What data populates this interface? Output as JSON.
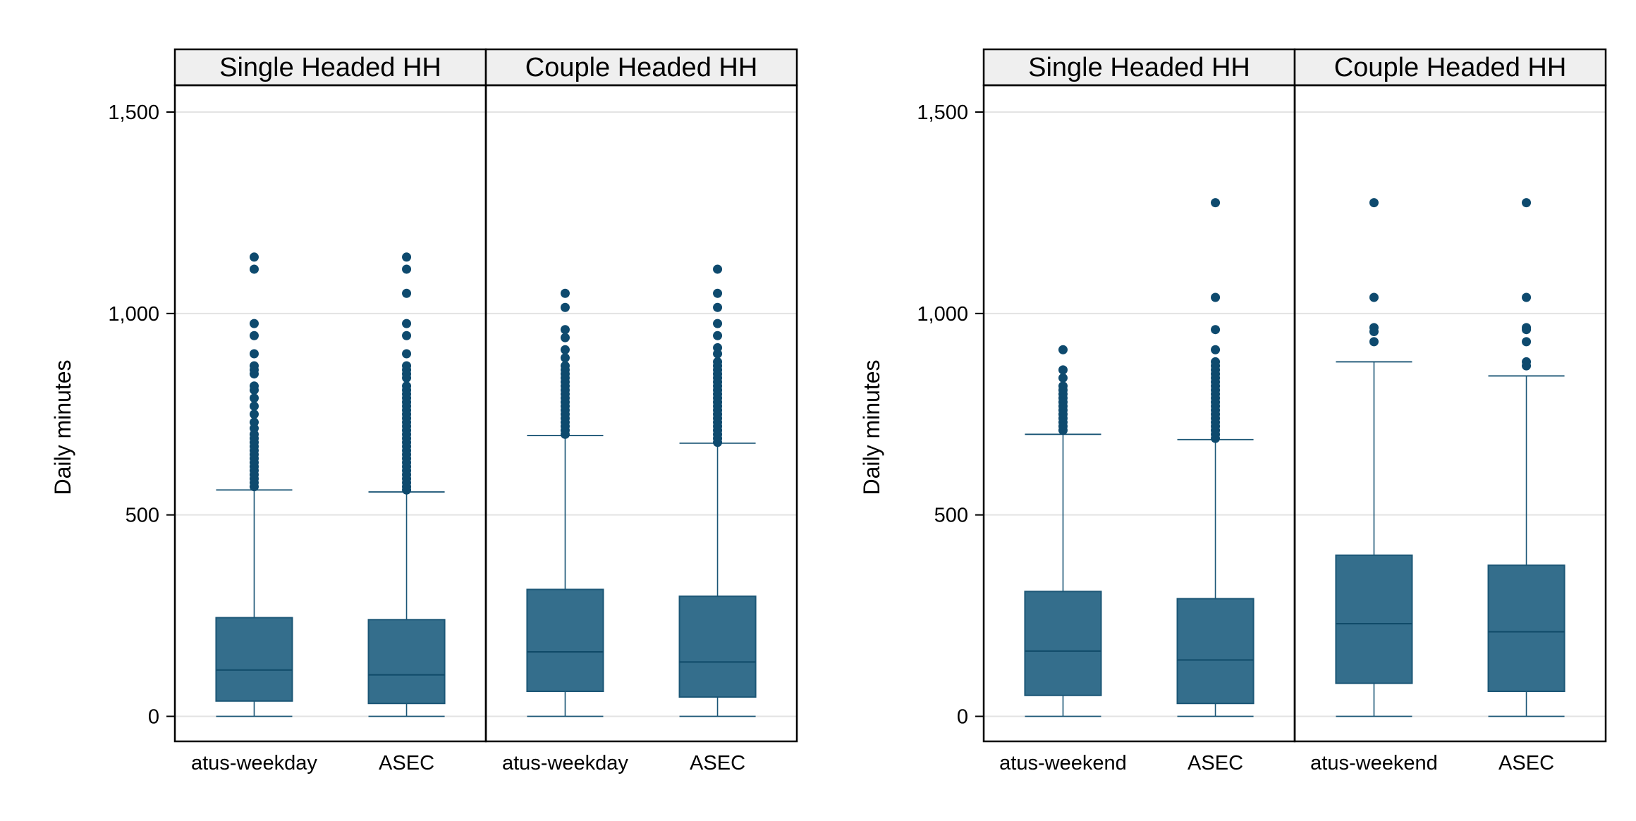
{
  "colors": {
    "box_fill": "#346E8C",
    "box_stroke": "#1B5676",
    "outlier": "#0E4A6E",
    "strip_bg": "#EFEFEF",
    "grid": "#E3E3E3"
  },
  "chart_data": [
    {
      "type": "box",
      "ylabel": "Daily minutes",
      "ylim": [
        -60,
        1640
      ],
      "yticks": [
        0,
        500,
        1000,
        1500
      ],
      "ytick_labels": [
        "0",
        "500",
        "1,000",
        "1,500"
      ],
      "grid": true,
      "facets": [
        {
          "title": "Single Headed HH",
          "boxes": [
            {
              "label": "atus-weekday",
              "whisker_low": 0,
              "q1": 38,
              "median": 115,
              "q3": 245,
              "whisker_high": 562,
              "outliers": [
                1140,
                1110,
                975,
                945,
                900,
                870,
                860,
                850,
                820,
                810,
                790,
                770,
                750,
                730,
                715,
                700,
                690,
                680,
                670,
                660,
                650,
                640,
                630,
                620,
                610,
                600,
                590,
                580,
                570
              ]
            },
            {
              "label": "ASEC",
              "whisker_low": 0,
              "q1": 32,
              "median": 103,
              "q3": 240,
              "whisker_high": 557,
              "outliers": [
                1140,
                1110,
                1050,
                975,
                945,
                900,
                870,
                860,
                850,
                840,
                820,
                810,
                800,
                790,
                780,
                770,
                760,
                750,
                740,
                730,
                720,
                710,
                700,
                690,
                680,
                670,
                660,
                650,
                640,
                630,
                620,
                610,
                600,
                590,
                580,
                570,
                562
              ]
            }
          ]
        },
        {
          "title": "Couple Headed HH",
          "boxes": [
            {
              "label": "atus-weekday",
              "whisker_low": 0,
              "q1": 62,
              "median": 160,
              "q3": 315,
              "whisker_high": 697,
              "outliers": [
                1050,
                1015,
                960,
                940,
                910,
                890,
                870,
                860,
                850,
                840,
                830,
                820,
                810,
                800,
                790,
                780,
                770,
                760,
                750,
                740,
                730,
                720,
                710,
                700
              ]
            },
            {
              "label": "ASEC",
              "whisker_low": 0,
              "q1": 48,
              "median": 135,
              "q3": 298,
              "whisker_high": 678,
              "outliers": [
                1110,
                1050,
                1015,
                975,
                945,
                915,
                900,
                880,
                870,
                860,
                850,
                840,
                830,
                820,
                810,
                800,
                790,
                780,
                770,
                760,
                750,
                740,
                730,
                720,
                710,
                700,
                690,
                680
              ]
            }
          ]
        }
      ]
    },
    {
      "type": "box",
      "ylabel": "Daily minutes",
      "ylim": [
        -60,
        1640
      ],
      "yticks": [
        0,
        500,
        1000,
        1500
      ],
      "ytick_labels": [
        "0",
        "500",
        "1,000",
        "1,500"
      ],
      "grid": true,
      "facets": [
        {
          "title": "Single Headed HH",
          "boxes": [
            {
              "label": "atus-weekend",
              "whisker_low": 0,
              "q1": 52,
              "median": 162,
              "q3": 310,
              "whisker_high": 700,
              "outliers": [
                910,
                860,
                840,
                820,
                810,
                800,
                790,
                780,
                770,
                760,
                750,
                740,
                730,
                720,
                710
              ]
            },
            {
              "label": "ASEC",
              "whisker_low": 0,
              "q1": 32,
              "median": 140,
              "q3": 292,
              "whisker_high": 687,
              "outliers": [
                1275,
                1040,
                960,
                910,
                880,
                870,
                860,
                850,
                840,
                830,
                820,
                810,
                800,
                790,
                780,
                770,
                760,
                750,
                740,
                730,
                720,
                710,
                700,
                690
              ]
            }
          ]
        },
        {
          "title": "Couple Headed HH",
          "boxes": [
            {
              "label": "atus-weekend",
              "whisker_low": 0,
              "q1": 82,
              "median": 230,
              "q3": 400,
              "whisker_high": 880,
              "outliers": [
                1275,
                1040,
                965,
                955,
                930
              ]
            },
            {
              "label": "ASEC",
              "whisker_low": 0,
              "q1": 62,
              "median": 210,
              "q3": 375,
              "whisker_high": 845,
              "outliers": [
                1275,
                1040,
                965,
                960,
                930,
                880,
                870
              ]
            }
          ]
        }
      ]
    }
  ]
}
